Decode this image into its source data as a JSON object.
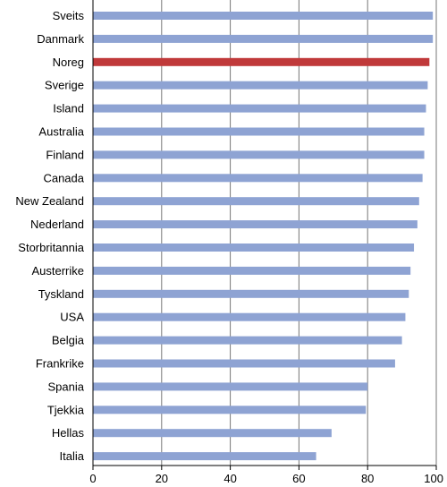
{
  "chart_data": {
    "type": "bar",
    "orientation": "horizontal",
    "categories": [
      "Sveits",
      "Danmark",
      "Noreg",
      "Sverige",
      "Island",
      "Australia",
      "Finland",
      "Canada",
      "New Zealand",
      "Nederland",
      "Storbritannia",
      "Austerrike",
      "Tyskland",
      "USA",
      "Belgia",
      "Frankrike",
      "Spania",
      "Tjekkia",
      "Hellas",
      "Italia"
    ],
    "values": [
      99,
      99,
      98,
      97.5,
      97,
      96.5,
      96.5,
      96,
      95,
      94.5,
      93.5,
      92.5,
      92,
      91,
      90,
      88,
      80,
      79.5,
      69.5,
      65
    ],
    "xlim": [
      0,
      100
    ],
    "xticks": [
      0,
      20,
      40,
      60,
      80,
      100
    ],
    "grid": "vertical",
    "colors": {
      "default": "#8ea3d3",
      "highlight": "#c0393a",
      "highlight_category": "Noreg",
      "axis": "#000000",
      "grid": "#777777"
    }
  }
}
